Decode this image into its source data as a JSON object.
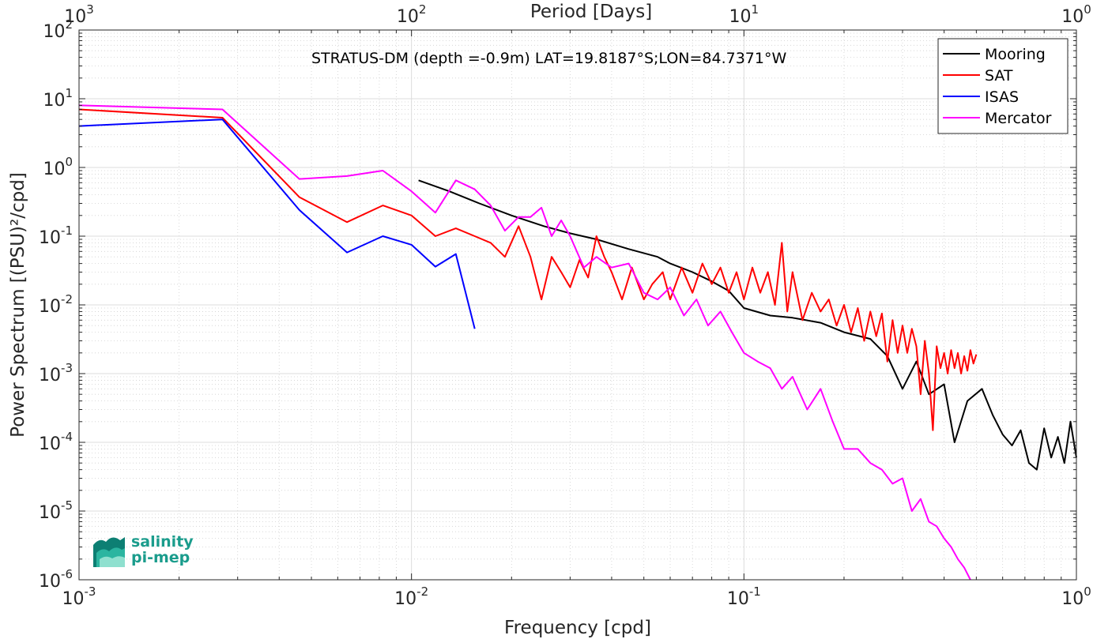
{
  "chart_data": {
    "type": "line",
    "title": "STRATUS-DM (depth =-0.9m) LAT=19.8187°S;LON=84.7371°W",
    "xlabel": "Frequency [cpd]",
    "ylabel": "Power Spectrum [(PSU)²/cpd]",
    "top_xlabel": "Period [Days]",
    "x_scale": "log",
    "y_scale": "log",
    "xlim": [
      0.001,
      1
    ],
    "ylim": [
      1e-06,
      100
    ],
    "top_xlim_period_days": [
      1000,
      1
    ],
    "grid": true,
    "legend_position": "top-right",
    "x_ticks": [
      {
        "value": 0.001,
        "base": "10",
        "exp": "-3"
      },
      {
        "value": 0.01,
        "base": "10",
        "exp": "-2"
      },
      {
        "value": 0.1,
        "base": "10",
        "exp": "-1"
      },
      {
        "value": 1,
        "base": "10",
        "exp": "0"
      }
    ],
    "top_x_ticks": [
      {
        "value": 1000,
        "base": "10",
        "exp": "3"
      },
      {
        "value": 100,
        "base": "10",
        "exp": "2"
      },
      {
        "value": 10,
        "base": "10",
        "exp": "1"
      },
      {
        "value": 1,
        "base": "10",
        "exp": "0"
      }
    ],
    "y_ticks": [
      {
        "value": 100,
        "base": "10",
        "exp": "2"
      },
      {
        "value": 10,
        "base": "10",
        "exp": "1"
      },
      {
        "value": 1,
        "base": "10",
        "exp": "0"
      },
      {
        "value": 0.1,
        "base": "10",
        "exp": "-1"
      },
      {
        "value": 0.01,
        "base": "10",
        "exp": "-2"
      },
      {
        "value": 0.001,
        "base": "10",
        "exp": "-3"
      },
      {
        "value": 0.0001,
        "base": "10",
        "exp": "-4"
      },
      {
        "value": 1e-05,
        "base": "10",
        "exp": "-5"
      },
      {
        "value": 1e-06,
        "base": "10",
        "exp": "-6"
      }
    ],
    "series": [
      {
        "name": "Mooring",
        "color": "#000000",
        "x": [
          0.0105,
          0.013,
          0.016,
          0.02,
          0.025,
          0.03,
          0.036,
          0.045,
          0.055,
          0.06,
          0.07,
          0.08,
          0.09,
          0.1,
          0.12,
          0.14,
          0.17,
          0.2,
          0.24,
          0.27,
          0.3,
          0.33,
          0.36,
          0.4,
          0.43,
          0.47,
          0.52,
          0.56,
          0.6,
          0.64,
          0.68,
          0.72,
          0.76,
          0.8,
          0.84,
          0.88,
          0.92,
          0.96,
          1.0
        ],
        "y": [
          0.65,
          0.45,
          0.3,
          0.2,
          0.14,
          0.11,
          0.09,
          0.065,
          0.05,
          0.04,
          0.03,
          0.022,
          0.016,
          0.009,
          0.007,
          0.0065,
          0.0055,
          0.004,
          0.0032,
          0.0018,
          0.0006,
          0.0015,
          0.0005,
          0.0007,
          0.0001,
          0.0004,
          0.0006,
          0.00025,
          0.00013,
          9e-05,
          0.00015,
          5e-05,
          4e-05,
          0.00016,
          6e-05,
          0.00012,
          5e-05,
          0.0002,
          6e-05
        ]
      },
      {
        "name": "SAT",
        "color": "#ff0000",
        "x": [
          0.001,
          0.0027,
          0.0046,
          0.0064,
          0.0082,
          0.01,
          0.0118,
          0.0136,
          0.0155,
          0.0173,
          0.0191,
          0.021,
          0.0228,
          0.0246,
          0.0264,
          0.0282,
          0.03,
          0.032,
          0.034,
          0.036,
          0.038,
          0.04,
          0.043,
          0.046,
          0.05,
          0.053,
          0.057,
          0.06,
          0.065,
          0.07,
          0.075,
          0.08,
          0.085,
          0.09,
          0.095,
          0.1,
          0.106,
          0.112,
          0.118,
          0.124,
          0.13,
          0.135,
          0.14,
          0.15,
          0.16,
          0.17,
          0.18,
          0.19,
          0.2,
          0.21,
          0.22,
          0.23,
          0.24,
          0.25,
          0.26,
          0.27,
          0.28,
          0.29,
          0.3,
          0.31,
          0.32,
          0.33,
          0.34,
          0.35,
          0.36,
          0.37,
          0.38,
          0.39,
          0.4,
          0.41,
          0.42,
          0.43,
          0.44,
          0.45,
          0.46,
          0.47,
          0.48,
          0.49,
          0.5
        ],
        "y": [
          7.0,
          5.3,
          0.37,
          0.16,
          0.28,
          0.2,
          0.1,
          0.13,
          0.1,
          0.08,
          0.05,
          0.14,
          0.05,
          0.012,
          0.05,
          0.03,
          0.018,
          0.045,
          0.025,
          0.1,
          0.05,
          0.03,
          0.012,
          0.035,
          0.012,
          0.02,
          0.03,
          0.012,
          0.035,
          0.015,
          0.04,
          0.02,
          0.035,
          0.015,
          0.03,
          0.012,
          0.035,
          0.015,
          0.03,
          0.01,
          0.08,
          0.008,
          0.03,
          0.006,
          0.015,
          0.008,
          0.012,
          0.005,
          0.01,
          0.004,
          0.009,
          0.003,
          0.008,
          0.0035,
          0.0075,
          0.0015,
          0.006,
          0.002,
          0.005,
          0.002,
          0.0045,
          0.0025,
          0.0005,
          0.003,
          0.001,
          0.00015,
          0.0025,
          0.0012,
          0.002,
          0.001,
          0.0022,
          0.0012,
          0.002,
          0.001,
          0.0018,
          0.0011,
          0.0022,
          0.0014,
          0.0019
        ]
      },
      {
        "name": "ISAS",
        "color": "#0000ff",
        "x": [
          0.001,
          0.0027,
          0.0046,
          0.0064,
          0.0082,
          0.01,
          0.0118,
          0.0136,
          0.0155
        ],
        "y": [
          4.0,
          5.0,
          0.24,
          0.058,
          0.1,
          0.075,
          0.036,
          0.055,
          0.0045
        ]
      },
      {
        "name": "Mercator",
        "color": "#ff00ff",
        "x": [
          0.001,
          0.0027,
          0.0046,
          0.0064,
          0.0082,
          0.01,
          0.0118,
          0.0136,
          0.0155,
          0.0173,
          0.0191,
          0.021,
          0.0228,
          0.0246,
          0.0264,
          0.0282,
          0.03,
          0.033,
          0.036,
          0.04,
          0.045,
          0.05,
          0.055,
          0.06,
          0.066,
          0.072,
          0.078,
          0.085,
          0.092,
          0.1,
          0.11,
          0.12,
          0.13,
          0.14,
          0.155,
          0.17,
          0.185,
          0.2,
          0.22,
          0.24,
          0.26,
          0.28,
          0.3,
          0.32,
          0.34,
          0.36,
          0.38,
          0.4,
          0.42,
          0.44,
          0.46,
          0.48
        ],
        "y": [
          8.0,
          7.0,
          0.68,
          0.75,
          0.9,
          0.45,
          0.22,
          0.65,
          0.48,
          0.28,
          0.12,
          0.19,
          0.19,
          0.26,
          0.1,
          0.17,
          0.1,
          0.035,
          0.05,
          0.035,
          0.04,
          0.015,
          0.012,
          0.018,
          0.007,
          0.012,
          0.005,
          0.008,
          0.004,
          0.002,
          0.0015,
          0.0012,
          0.0006,
          0.0009,
          0.0003,
          0.0006,
          0.0002,
          8e-05,
          8e-05,
          5e-05,
          4e-05,
          2.5e-05,
          3e-05,
          1e-05,
          1.5e-05,
          7e-06,
          6e-06,
          4e-06,
          3e-06,
          2e-06,
          1.5e-06,
          1e-06
        ]
      }
    ]
  },
  "logo": {
    "line1": "salinity",
    "line2": "pi-mep"
  }
}
